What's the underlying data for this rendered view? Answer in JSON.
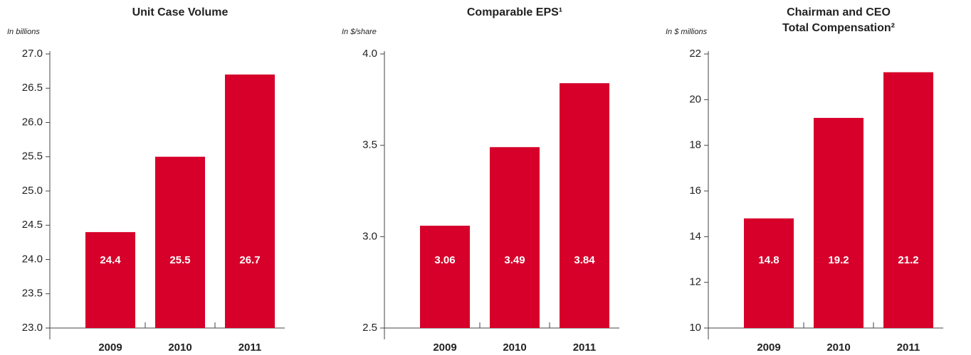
{
  "chart_data": [
    {
      "type": "bar",
      "title": "Unit Case Volume",
      "y_label": "In billions",
      "categories": [
        "2009",
        "2010",
        "2011"
      ],
      "values": [
        24.4,
        25.5,
        26.7
      ],
      "color": "#d6002a",
      "ylim": [
        23,
        27
      ],
      "yticks": [
        {
          "value": 23,
          "label": "23.0"
        },
        23.5,
        {
          "value": 24,
          "label": "24.0"
        },
        24.5,
        {
          "value": 25,
          "label": "25.0"
        },
        25.5,
        {
          "value": 26,
          "label": "26.0"
        },
        26.5,
        {
          "value": 27,
          "label": "27.0"
        }
      ]
    },
    {
      "type": "bar",
      "title": "Comparable EPS¹",
      "y_label": "In $/share",
      "categories": [
        "2009",
        "2010",
        "2011"
      ],
      "values": [
        3.06,
        3.49,
        3.84
      ],
      "color": "#d6002a",
      "ylim": [
        2.5,
        4
      ],
      "yticks": [
        2.5,
        {
          "value": 3,
          "label": "3.0"
        },
        3.5,
        {
          "value": 4,
          "label": "4.0"
        }
      ]
    },
    {
      "type": "bar",
      "title": [
        "Chairman and CEO",
        "Total Compensation²"
      ],
      "y_label": "In $ millions",
      "categories": [
        "2009",
        "2010",
        "2011"
      ],
      "values": [
        14.8,
        19.2,
        21.2
      ],
      "color": "#d6002a",
      "ylim": [
        10,
        22
      ],
      "yticks": [
        10,
        12,
        14,
        16,
        18,
        20,
        22
      ]
    }
  ]
}
